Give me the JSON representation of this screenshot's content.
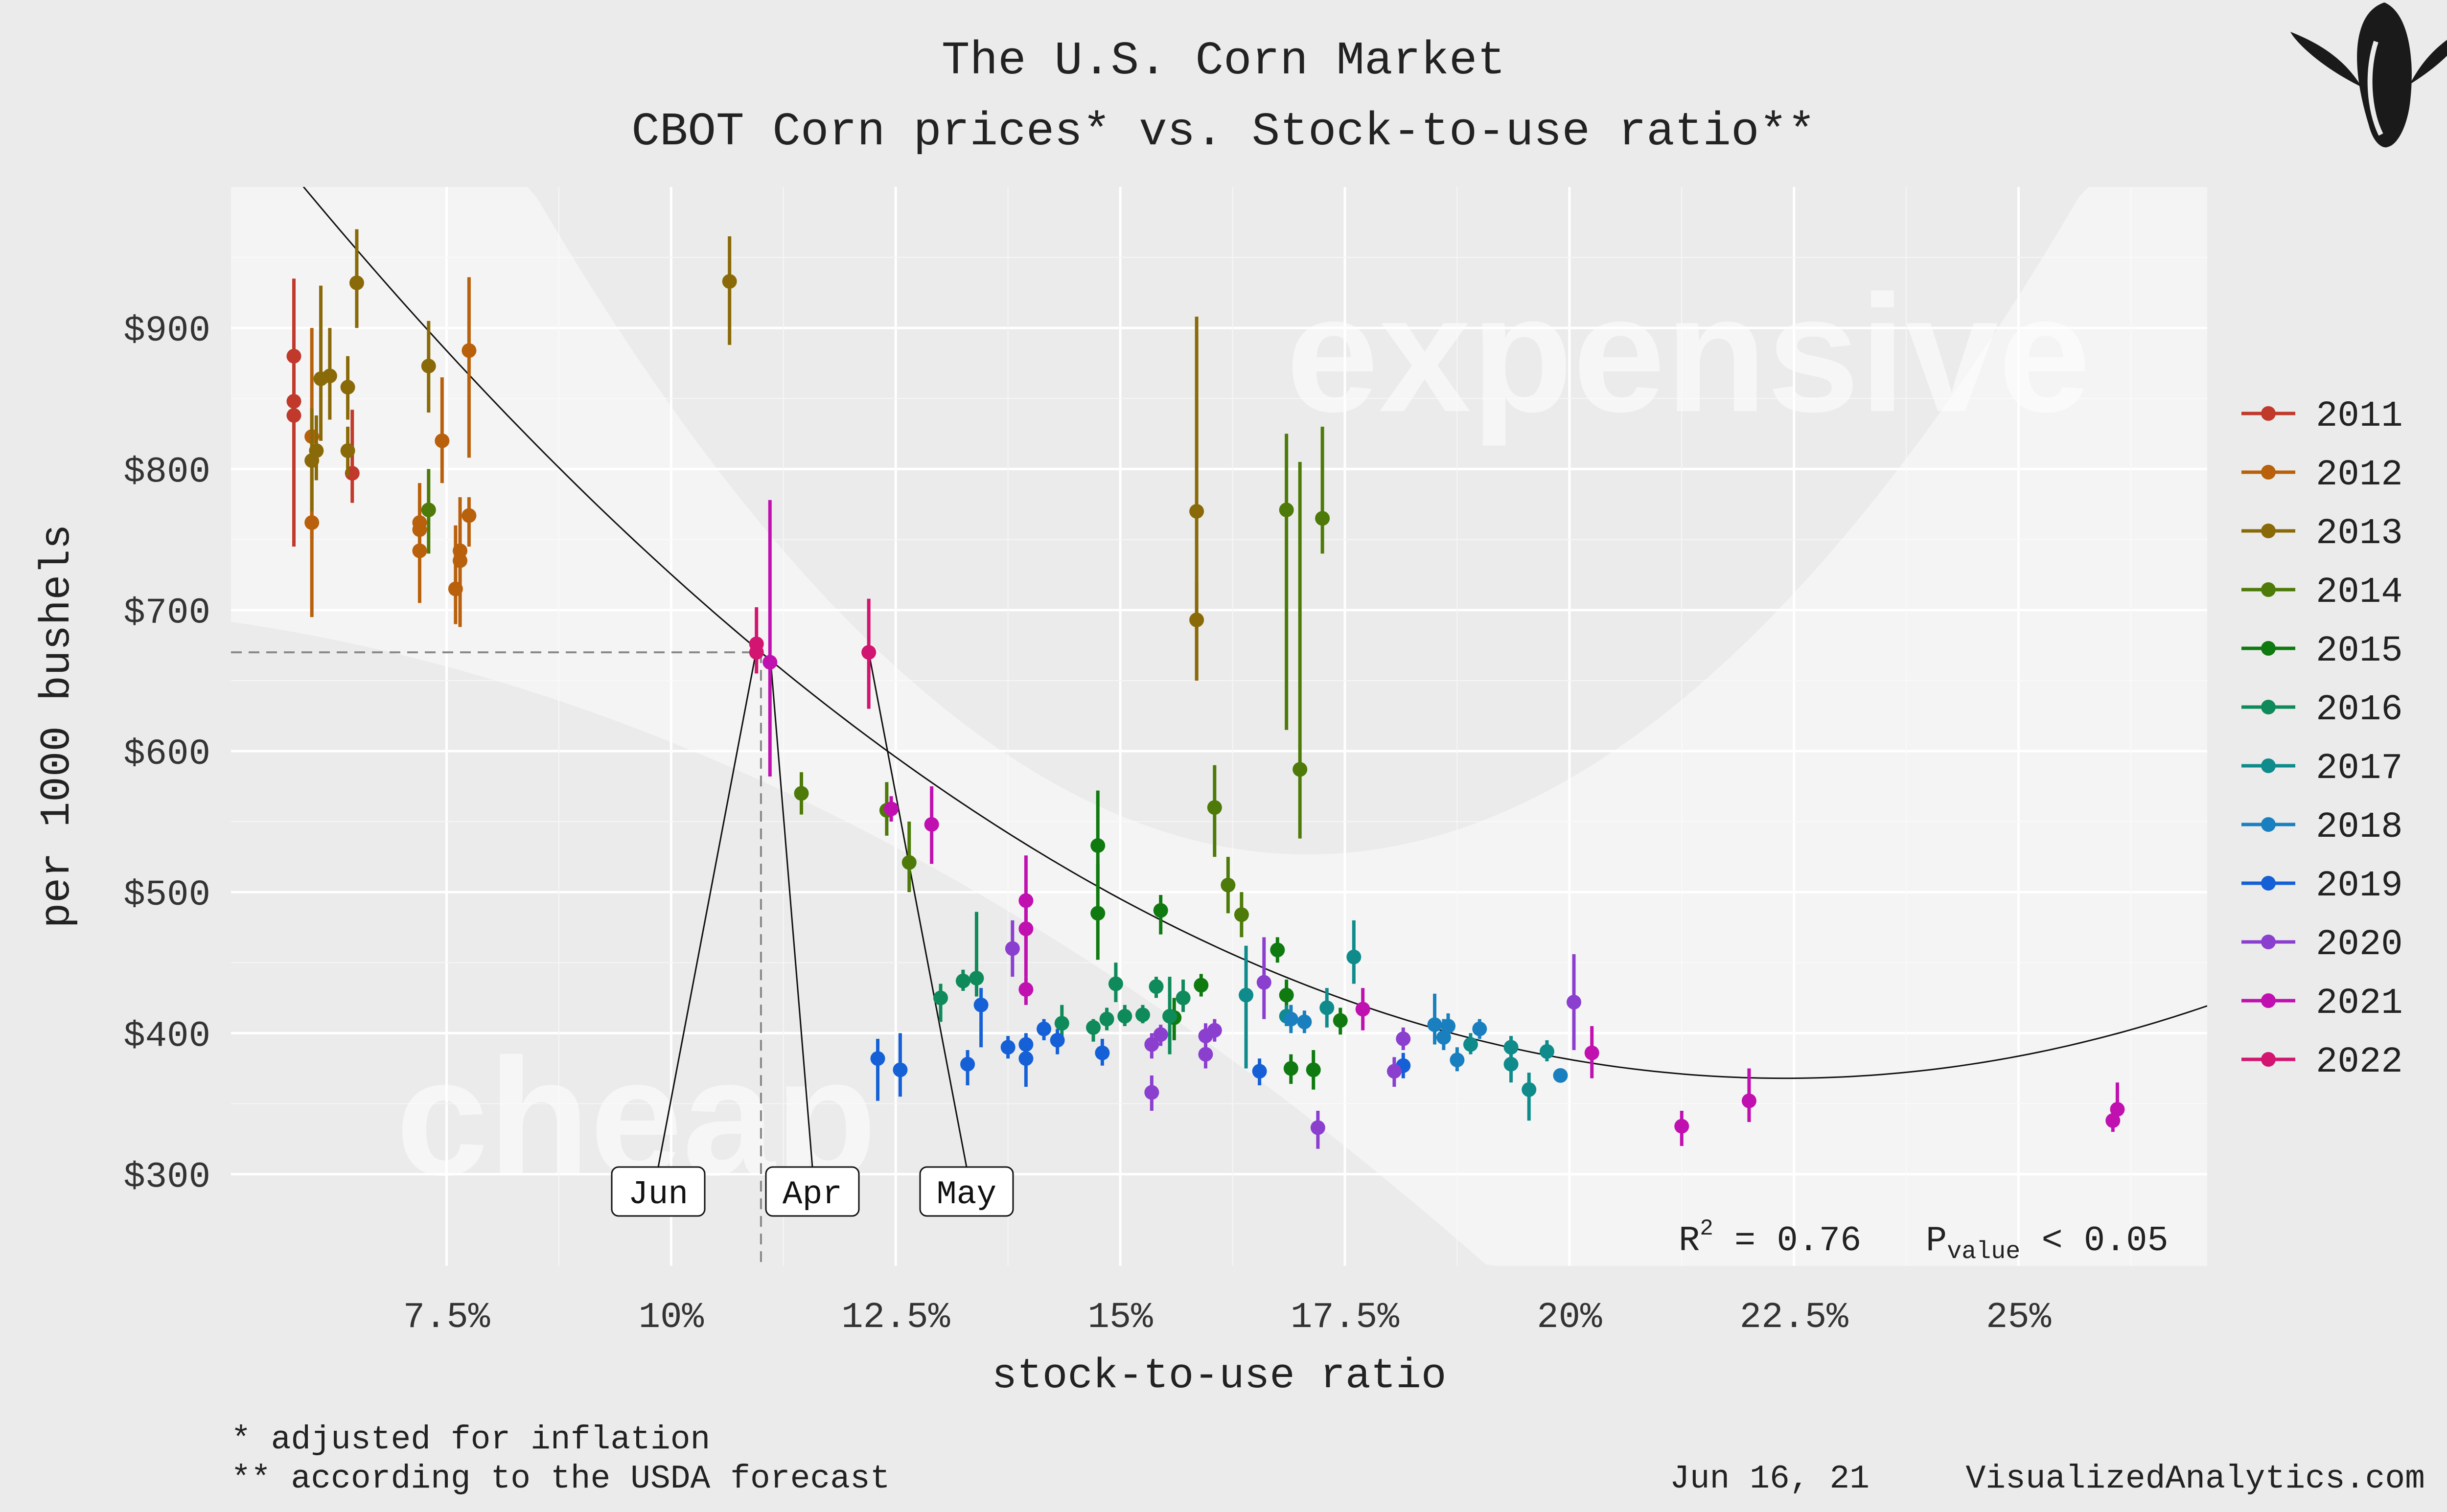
{
  "page": {
    "title": "The U.S. Corn Market",
    "subtitle": "CBOT Corn prices* vs. Stock-to-use ratio**",
    "footnote1": "* adjusted for inflation",
    "footnote2": "** according to the USDA forecast",
    "date": "Jun 16, 21",
    "site": "VisualizedAnalytics.com",
    "logo_icon": "corn-cob-icon"
  },
  "chart_data": {
    "type": "scatter",
    "title": "The U.S. Corn Market",
    "subtitle": "CBOT Corn prices* vs. Stock-to-use ratio**",
    "xlabel": "stock-to-use ratio",
    "ylabel": "per 1000 bushels",
    "xlim": [
      5.1,
      27.1
    ],
    "ylim": [
      235,
      1000
    ],
    "x_ticks": [
      7.5,
      10,
      12.5,
      15,
      17.5,
      20,
      22.5,
      25
    ],
    "x_tick_labels": [
      "7.5%",
      "10%",
      "12.5%",
      "15%",
      "17.5%",
      "20%",
      "22.5%",
      "25%"
    ],
    "y_ticks": [
      300,
      400,
      500,
      600,
      700,
      800,
      900
    ],
    "y_tick_labels": [
      "$300",
      "$400",
      "$500",
      "$600",
      "$700",
      "$800",
      "$900"
    ],
    "grid": true,
    "legend_position": "right",
    "background_labels": {
      "expensive": "expensive",
      "cheap": "cheap"
    },
    "stats": {
      "r2_label": "R",
      "r2_sup": "2",
      "r2_text": " = 0.76",
      "p_label": "P",
      "p_sub": "value",
      "p_text": " < 0.05"
    },
    "fit_curve": {
      "quadratic_vertex_x": 22.4,
      "quadratic_vertex_y": 368,
      "coef_a": 1.7,
      "band_halfwidth": 55
    },
    "reference": {
      "x": 11,
      "y": 670
    },
    "callouts": [
      {
        "label": "Jun",
        "point": [
          10.95,
          672
        ]
      },
      {
        "label": "Apr",
        "point": [
          11.1,
          670
        ]
      },
      {
        "label": "May",
        "point": [
          12.2,
          670
        ]
      }
    ],
    "series": [
      {
        "name": "2011",
        "color": "#c0392b",
        "points": [
          [
            5.8,
            880,
            935,
            745
          ],
          [
            5.8,
            848,
            870,
            820
          ],
          [
            5.8,
            838,
            850,
            825
          ],
          [
            6.45,
            797,
            842,
            776
          ]
        ]
      },
      {
        "name": "2012",
        "color": "#b8600b",
        "points": [
          [
            6.0,
            762,
            800,
            695
          ],
          [
            6.0,
            823,
            900,
            750
          ],
          [
            7.2,
            762,
            790,
            735
          ],
          [
            7.2,
            757,
            778,
            740
          ],
          [
            7.2,
            742,
            760,
            705
          ],
          [
            7.45,
            820,
            865,
            790
          ],
          [
            7.6,
            715,
            760,
            690
          ],
          [
            7.65,
            742,
            780,
            690
          ],
          [
            7.65,
            735,
            755,
            688
          ],
          [
            7.75,
            767,
            780,
            745
          ],
          [
            7.75,
            884,
            936,
            808
          ]
        ]
      },
      {
        "name": "2013",
        "color": "#8a6a08",
        "points": [
          [
            6.0,
            806,
            843,
            770
          ],
          [
            6.05,
            813,
            838,
            792
          ],
          [
            6.1,
            864,
            930,
            820
          ],
          [
            6.2,
            866,
            900,
            835
          ],
          [
            6.4,
            858,
            880,
            835
          ],
          [
            6.4,
            813,
            830,
            795
          ],
          [
            6.5,
            932,
            970,
            900
          ],
          [
            7.3,
            873,
            905,
            840
          ],
          [
            10.65,
            933,
            965,
            888
          ],
          [
            15.85,
            770,
            908,
            650
          ],
          [
            15.85,
            693,
            720,
            650
          ]
        ]
      },
      {
        "name": "2014",
        "color": "#4d7a08",
        "points": [
          [
            7.3,
            771,
            800,
            740
          ],
          [
            11.45,
            570,
            585,
            555
          ],
          [
            12.4,
            558,
            578,
            540
          ],
          [
            12.65,
            521,
            550,
            500
          ],
          [
            16.05,
            560,
            590,
            525
          ],
          [
            16.2,
            505,
            525,
            485
          ],
          [
            16.35,
            484,
            500,
            468
          ],
          [
            16.85,
            771,
            825,
            615
          ],
          [
            17.0,
            587,
            805,
            538
          ],
          [
            17.25,
            765,
            830,
            740
          ]
        ]
      },
      {
        "name": "2015",
        "color": "#0f7a0f",
        "points": [
          [
            14.75,
            533,
            572,
            502
          ],
          [
            14.75,
            485,
            520,
            452
          ],
          [
            15.45,
            487,
            498,
            470
          ],
          [
            15.6,
            411,
            425,
            395
          ],
          [
            15.9,
            434,
            442,
            426
          ],
          [
            16.75,
            459,
            468,
            450
          ],
          [
            16.85,
            427,
            438,
            413
          ],
          [
            16.9,
            375,
            385,
            364
          ],
          [
            17.15,
            374,
            388,
            360
          ],
          [
            17.45,
            409,
            418,
            399
          ]
        ]
      },
      {
        "name": "2016",
        "color": "#0f8a5a",
        "points": [
          [
            13.0,
            425,
            435,
            408
          ],
          [
            13.25,
            437,
            445,
            430
          ],
          [
            13.4,
            439,
            486,
            426
          ],
          [
            14.35,
            407,
            420,
            397
          ],
          [
            14.7,
            404,
            410,
            394
          ],
          [
            14.85,
            410,
            418,
            402
          ],
          [
            14.95,
            435,
            450,
            422
          ],
          [
            15.05,
            412,
            420,
            405
          ],
          [
            15.25,
            413,
            420,
            407
          ],
          [
            15.4,
            433,
            440,
            425
          ],
          [
            15.55,
            412,
            440,
            385
          ],
          [
            15.7,
            425,
            438,
            415
          ]
        ]
      },
      {
        "name": "2017",
        "color": "#0f8b8b",
        "points": [
          [
            16.4,
            427,
            462,
            375
          ],
          [
            16.85,
            412,
            420,
            405
          ],
          [
            17.3,
            418,
            432,
            404
          ],
          [
            17.6,
            454,
            480,
            435
          ],
          [
            18.9,
            392,
            400,
            385
          ],
          [
            19.35,
            378,
            395,
            365
          ],
          [
            19.35,
            390,
            398,
            383
          ],
          [
            19.55,
            360,
            372,
            338
          ],
          [
            19.75,
            387,
            395,
            380
          ]
        ]
      },
      {
        "name": "2018",
        "color": "#1a7fbf",
        "points": [
          [
            16.9,
            410,
            420,
            400
          ],
          [
            17.05,
            408,
            416,
            400
          ],
          [
            18.5,
            406,
            428,
            392
          ],
          [
            18.6,
            397,
            410,
            388
          ],
          [
            18.65,
            405,
            414,
            396
          ],
          [
            18.75,
            381,
            390,
            373
          ],
          [
            19.0,
            403,
            410,
            396
          ],
          [
            19.9,
            370,
            375,
            365
          ]
        ]
      },
      {
        "name": "2019",
        "color": "#1560d6",
        "points": [
          [
            12.3,
            382,
            396,
            352
          ],
          [
            12.55,
            374,
            400,
            355
          ],
          [
            13.3,
            378,
            388,
            363
          ],
          [
            13.45,
            420,
            432,
            390
          ],
          [
            13.75,
            390,
            398,
            382
          ],
          [
            13.95,
            382,
            400,
            362
          ],
          [
            13.95,
            392,
            398,
            384
          ],
          [
            14.15,
            403,
            410,
            395
          ],
          [
            14.3,
            395,
            403,
            385
          ],
          [
            14.8,
            386,
            396,
            377
          ],
          [
            16.55,
            373,
            382,
            363
          ],
          [
            18.15,
            377,
            386,
            368
          ]
        ]
      },
      {
        "name": "2020",
        "color": "#8b3fcf",
        "points": [
          [
            13.8,
            460,
            480,
            440
          ],
          [
            15.35,
            358,
            370,
            345
          ],
          [
            15.35,
            392,
            400,
            382
          ],
          [
            15.45,
            399,
            406,
            391
          ],
          [
            15.95,
            385,
            395,
            375
          ],
          [
            15.95,
            398,
            407,
            390
          ],
          [
            16.05,
            402,
            410,
            394
          ],
          [
            16.6,
            436,
            468,
            410
          ],
          [
            17.2,
            333,
            345,
            318
          ],
          [
            18.05,
            373,
            383,
            362
          ],
          [
            18.15,
            396,
            404,
            388
          ],
          [
            20.05,
            422,
            456,
            388
          ]
        ]
      },
      {
        "name": "2021",
        "color": "#c010b0",
        "points": [
          [
            11.1,
            663,
            778,
            582
          ],
          [
            12.45,
            559,
            568,
            550
          ],
          [
            12.9,
            548,
            575,
            520
          ],
          [
            13.95,
            494,
            526,
            440
          ],
          [
            13.95,
            474,
            492,
            452
          ],
          [
            13.95,
            431,
            440,
            420
          ],
          [
            17.7,
            417,
            432,
            402
          ],
          [
            20.25,
            386,
            405,
            368
          ],
          [
            21.25,
            334,
            345,
            320
          ],
          [
            22.0,
            352,
            375,
            337
          ],
          [
            26.05,
            338,
            348,
            330
          ],
          [
            26.1,
            346,
            365,
            335
          ]
        ]
      },
      {
        "name": "2022",
        "color": "#d11570",
        "points": [
          [
            10.95,
            676,
            702,
            655
          ],
          [
            10.95,
            670,
            678,
            663
          ],
          [
            12.2,
            670,
            708,
            630
          ]
        ]
      }
    ]
  }
}
